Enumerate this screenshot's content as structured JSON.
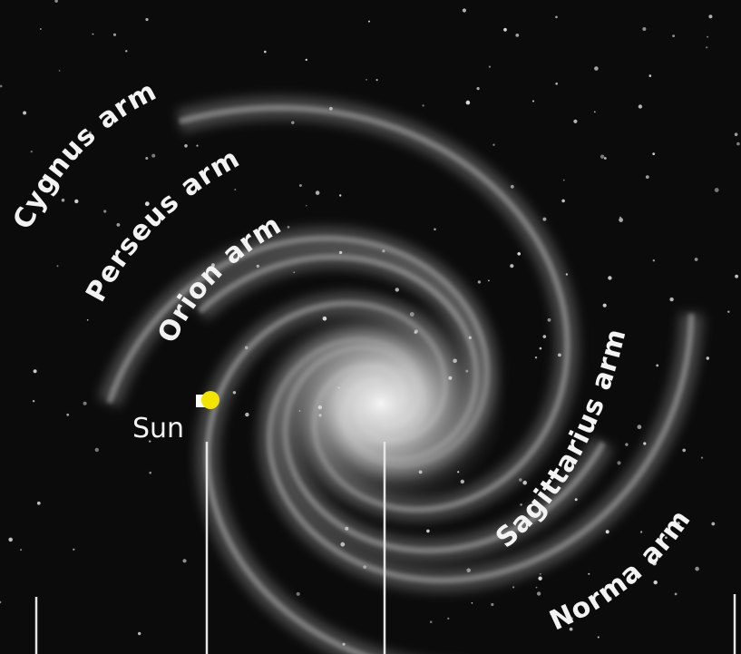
{
  "labels": {
    "arms": [
      "Cygnus arm",
      "Perseus arm",
      "Orion arm",
      "Sagittarius arm",
      "Norma arm"
    ],
    "sun": "Sun"
  }
}
